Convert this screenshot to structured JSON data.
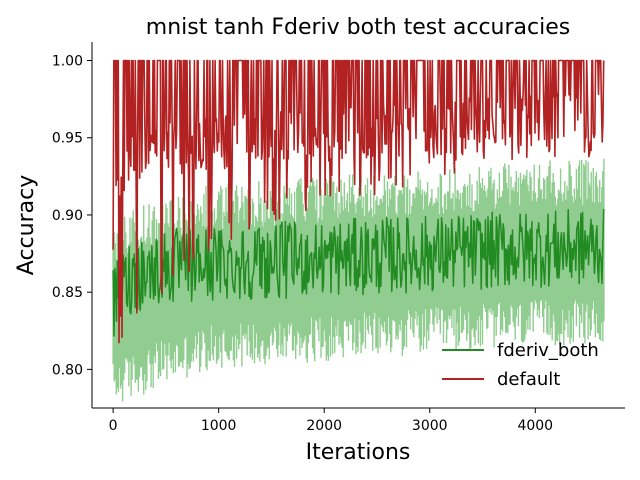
{
  "chart_data": {
    "type": "line",
    "title": "mnist tanh Fderiv both test accuracies",
    "xlabel": "Iterations",
    "ylabel": "Accuracy",
    "xlim": [
      -200,
      4850
    ],
    "ylim": [
      0.775,
      1.012
    ],
    "x_ticks": [
      0,
      1000,
      2000,
      3000,
      4000
    ],
    "x_tick_labels": [
      "0",
      "1000",
      "2000",
      "3000",
      "4000"
    ],
    "y_ticks": [
      0.8,
      0.85,
      0.9,
      0.95,
      1.0
    ],
    "y_tick_labels": [
      "0.80",
      "0.85",
      "0.90",
      "0.95",
      "1.00"
    ],
    "x_max_iteration": 4650,
    "legend_position": "lower right",
    "series": [
      {
        "name": "fderiv_both",
        "color": "#228b22",
        "band_color": "#7ec47e",
        "mean_trend": {
          "x": [
            0,
            100,
            200,
            500,
            1000,
            2000,
            3000,
            4000,
            4650
          ],
          "y": [
            0.84,
            0.855,
            0.862,
            0.866,
            0.869,
            0.872,
            0.875,
            0.878,
            0.879
          ]
        },
        "mean_spread": 0.025,
        "band_lower": {
          "x": [
            0,
            500,
            1000,
            2000,
            3000,
            4000,
            4650
          ],
          "y": [
            0.775,
            0.79,
            0.8,
            0.805,
            0.81,
            0.815,
            0.815
          ]
        },
        "band_upper": {
          "x": [
            0,
            500,
            1000,
            2000,
            3000,
            4000,
            4650
          ],
          "y": [
            0.9,
            0.915,
            0.92,
            0.925,
            0.93,
            0.935,
            0.937
          ]
        }
      },
      {
        "name": "default",
        "color": "#b22222",
        "levels": {
          "x": [
            0,
            50,
            200,
            500,
            1000,
            2000,
            3000,
            4000,
            4650
          ],
          "y": [
            0.87,
            0.92,
            0.93,
            0.935,
            0.94,
            0.945,
            0.95,
            0.955,
            0.955
          ]
        },
        "upper": 1.0,
        "lower_spikes": {
          "x": [
            0,
            200,
            600,
            1000,
            1500,
            2000,
            3000,
            4000,
            4650
          ],
          "y": [
            0.81,
            0.83,
            0.855,
            0.88,
            0.895,
            0.905,
            0.92,
            0.937,
            0.937
          ]
        }
      }
    ]
  }
}
